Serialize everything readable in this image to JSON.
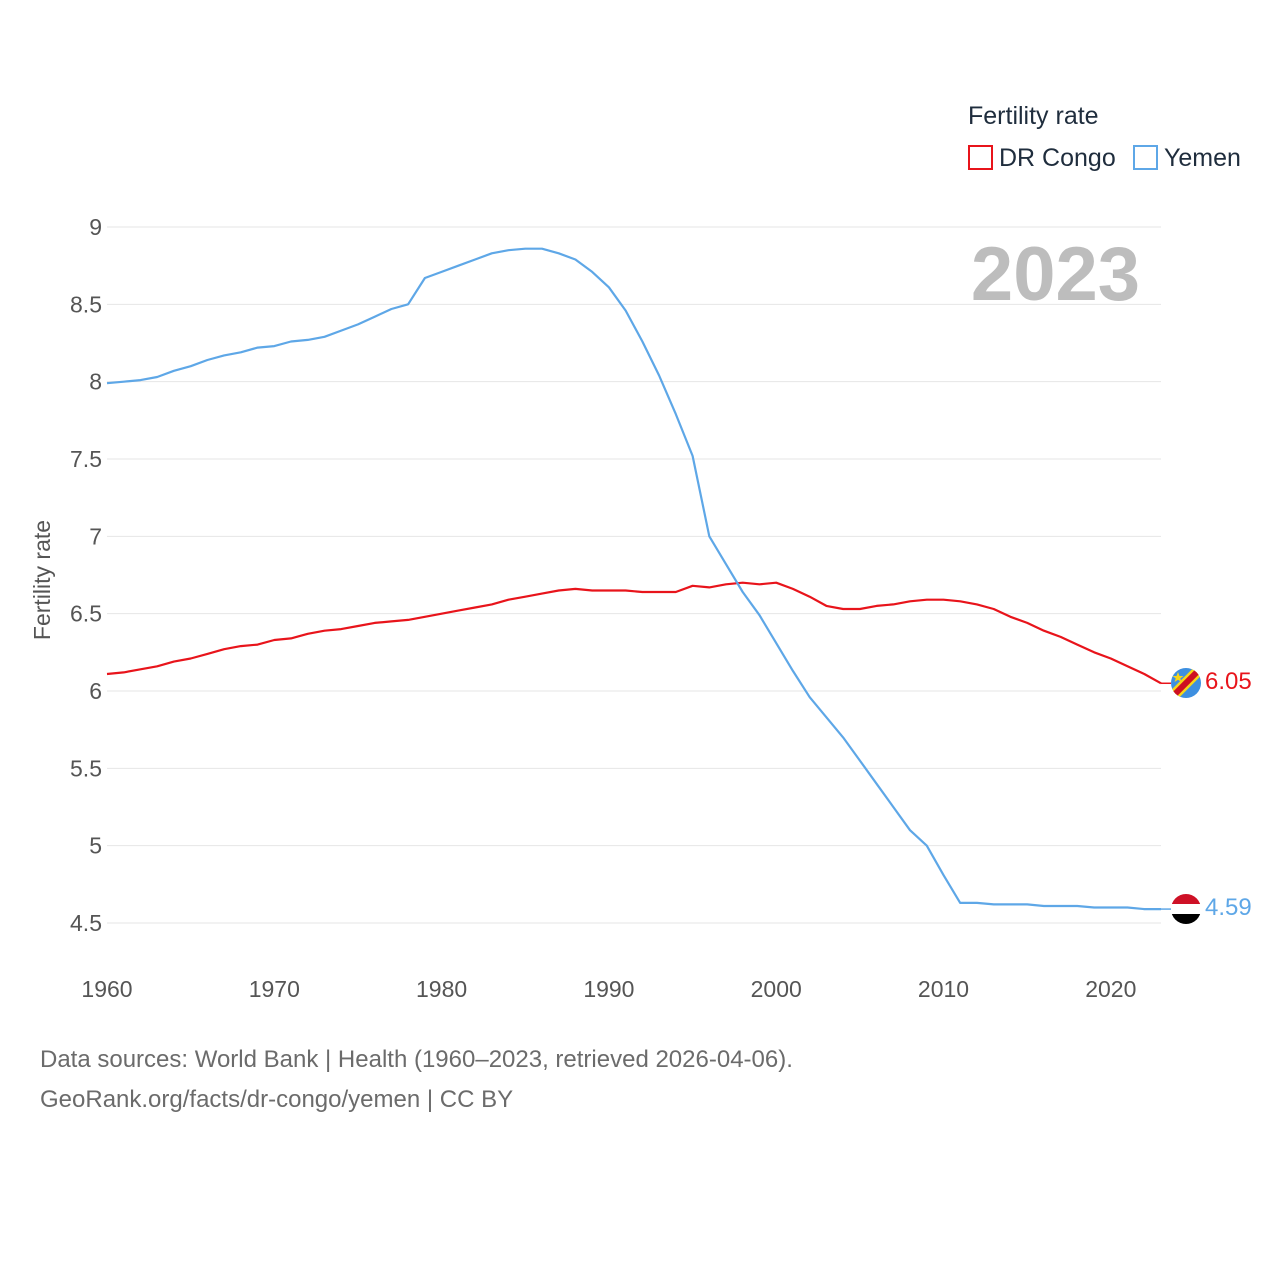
{
  "chart_data": {
    "type": "line",
    "legend_title": "Fertility rate",
    "year_label": "2023",
    "ylabel": "Fertility rate",
    "xlim": [
      1960,
      2023
    ],
    "ylim": [
      4.5,
      9
    ],
    "x_ticks": [
      1960,
      1970,
      1980,
      1990,
      2000,
      2010,
      2020
    ],
    "y_ticks": [
      4.5,
      5,
      5.5,
      6,
      6.5,
      7,
      7.5,
      8,
      8.5,
      9
    ],
    "legend_position": "top-right",
    "series": [
      {
        "name": "DR Congo",
        "color": "#e8141b",
        "end_label": "6.05",
        "x": [
          1960,
          1961,
          1962,
          1963,
          1964,
          1965,
          1966,
          1967,
          1968,
          1969,
          1970,
          1971,
          1972,
          1973,
          1974,
          1975,
          1976,
          1977,
          1978,
          1979,
          1980,
          1981,
          1982,
          1983,
          1984,
          1985,
          1986,
          1987,
          1988,
          1989,
          1990,
          1991,
          1992,
          1993,
          1994,
          1995,
          1996,
          1997,
          1998,
          1999,
          2000,
          2001,
          2002,
          2003,
          2004,
          2005,
          2006,
          2007,
          2008,
          2009,
          2010,
          2011,
          2012,
          2013,
          2014,
          2015,
          2016,
          2017,
          2018,
          2019,
          2020,
          2021,
          2022,
          2023
        ],
        "values": [
          6.11,
          6.12,
          6.14,
          6.16,
          6.19,
          6.21,
          6.24,
          6.27,
          6.29,
          6.3,
          6.33,
          6.34,
          6.37,
          6.39,
          6.4,
          6.42,
          6.44,
          6.45,
          6.46,
          6.48,
          6.5,
          6.52,
          6.54,
          6.56,
          6.59,
          6.61,
          6.63,
          6.65,
          6.66,
          6.65,
          6.65,
          6.65,
          6.64,
          6.64,
          6.64,
          6.68,
          6.67,
          6.69,
          6.7,
          6.69,
          6.7,
          6.66,
          6.61,
          6.55,
          6.53,
          6.53,
          6.55,
          6.56,
          6.58,
          6.59,
          6.59,
          6.58,
          6.56,
          6.53,
          6.48,
          6.44,
          6.39,
          6.35,
          6.3,
          6.25,
          6.21,
          6.16,
          6.11,
          6.05
        ]
      },
      {
        "name": "Yemen",
        "color": "#5ea7e7",
        "end_label": "4.59",
        "x": [
          1960,
          1961,
          1962,
          1963,
          1964,
          1965,
          1966,
          1967,
          1968,
          1969,
          1970,
          1971,
          1972,
          1973,
          1974,
          1975,
          1976,
          1977,
          1978,
          1979,
          1980,
          1981,
          1982,
          1983,
          1984,
          1985,
          1986,
          1987,
          1988,
          1989,
          1990,
          1991,
          1992,
          1993,
          1994,
          1995,
          1996,
          1997,
          1998,
          1999,
          2000,
          2001,
          2002,
          2003,
          2004,
          2005,
          2006,
          2007,
          2008,
          2009,
          2010,
          2011,
          2012,
          2013,
          2014,
          2015,
          2016,
          2017,
          2018,
          2019,
          2020,
          2021,
          2022,
          2023
        ],
        "values": [
          7.99,
          8.0,
          8.01,
          8.03,
          8.07,
          8.1,
          8.14,
          8.17,
          8.19,
          8.22,
          8.23,
          8.26,
          8.27,
          8.29,
          8.33,
          8.37,
          8.42,
          8.47,
          8.5,
          8.67,
          8.71,
          8.75,
          8.79,
          8.83,
          8.85,
          8.86,
          8.86,
          8.83,
          8.79,
          8.71,
          8.61,
          8.46,
          8.26,
          8.04,
          7.79,
          7.52,
          7.0,
          6.82,
          6.64,
          6.49,
          6.31,
          6.13,
          5.96,
          5.83,
          5.7,
          5.55,
          5.4,
          5.25,
          5.1,
          5.0,
          4.81,
          4.63,
          4.63,
          4.62,
          4.62,
          4.62,
          4.61,
          4.61,
          4.61,
          4.6,
          4.6,
          4.6,
          4.59,
          4.59
        ]
      }
    ]
  },
  "footer": {
    "line1": "Data sources: World Bank | Health (1960–2023, retrieved 2026-04-06).",
    "line2": "GeoRank.org/facts/dr-congo/yemen | CC BY"
  },
  "icons": {
    "drc_flag": "dr-congo-flag-icon",
    "yemen_flag": "yemen-flag-icon"
  }
}
